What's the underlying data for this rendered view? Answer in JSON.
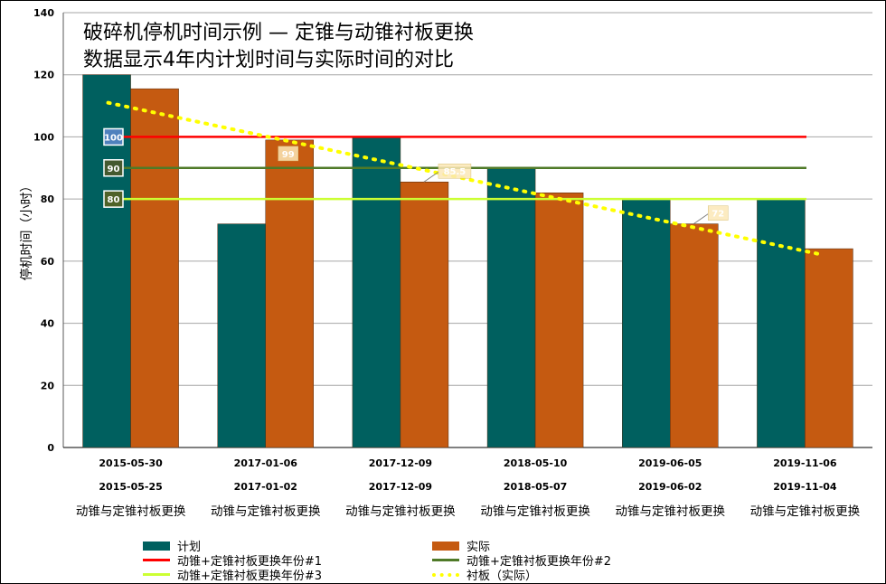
{
  "title_line1": "破碎机停机时间示例 — 定锥与动锥衬板更换",
  "title_line2": "数据显示4年内计划时间与实际时间的对比",
  "chart_data": {
    "type": "bar",
    "ylabel": "停机时间（小时）",
    "ylim": [
      0,
      140
    ],
    "yticks": [
      0,
      20,
      40,
      60,
      80,
      100,
      120,
      140
    ],
    "grid": true,
    "legend_placement": "bottom",
    "categories": [
      {
        "planned_date": "2015-05-30",
        "actual_date": "2015-05-25",
        "label": "动锥与定锥衬板更换"
      },
      {
        "planned_date": "2017-01-06",
        "actual_date": "2017-01-02",
        "label": "动锥与定锥衬板更换"
      },
      {
        "planned_date": "2017-12-09",
        "actual_date": "2017-12-09",
        "label": "动锥与定锥衬板更换"
      },
      {
        "planned_date": "2018-05-10",
        "actual_date": "2018-05-07",
        "label": "动锥与定锥衬板更换"
      },
      {
        "planned_date": "2019-06-05",
        "actual_date": "2019-06-02",
        "label": "动锥与定锥衬板更换"
      },
      {
        "planned_date": "2019-11-06",
        "actual_date": "2019-11-04",
        "label": "动锥与定锥衬板更换"
      }
    ],
    "series": [
      {
        "name": "计划",
        "kind": "bar",
        "color": "#00605f",
        "values": [
          120,
          72,
          100,
          90,
          80,
          80
        ]
      },
      {
        "name": "实际",
        "kind": "bar",
        "color": "#c55a11",
        "values": [
          115.5,
          99,
          85.5,
          82,
          72,
          64
        ]
      }
    ],
    "reference_lines": [
      {
        "name": "动锥+定锥衬板更换年份#1",
        "value": 100,
        "label": "100",
        "color": "#ff0000",
        "label_bg": "#4f81bd"
      },
      {
        "name": "动锥+定锥衬板更换年份#2",
        "value": 90,
        "label": "90",
        "color": "#4f7a28",
        "label_bg": "#44592f"
      },
      {
        "name": "动锥+定锥衬板更换年份#3",
        "value": 80,
        "label": "80",
        "color": "#ccff33",
        "label_bg": "#4f6228"
      }
    ],
    "trendline": {
      "name": "衬板（实际）",
      "color": "#ffff00",
      "start": 111,
      "end": 62
    },
    "data_labels": [
      {
        "category_index": 1,
        "text": "99"
      },
      {
        "category_index": 2,
        "text": "85.5"
      },
      {
        "category_index": 4,
        "text": "72"
      }
    ]
  }
}
